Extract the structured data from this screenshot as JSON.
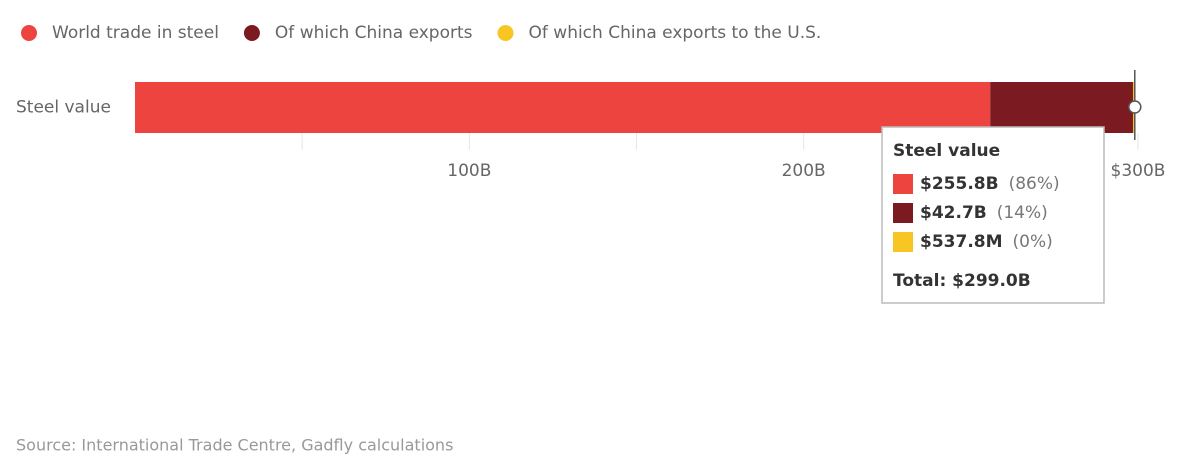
{
  "chart_data": {
    "type": "stacked-bar-horizontal",
    "categories": [
      "Steel value"
    ],
    "series": [
      {
        "name": "World trade in steel",
        "color": "#ee4440",
        "values": [
          255.8
        ],
        "value_labels": [
          "$255.8B"
        ]
      },
      {
        "name": "Of which China exports",
        "color": "#7b1a20",
        "values": [
          42.7
        ],
        "value_labels": [
          "$42.7B"
        ]
      },
      {
        "name": "Of which China exports to the U.S.",
        "color": "#f7c623",
        "values": [
          0.5378
        ],
        "value_labels": [
          "$537.8M"
        ]
      }
    ],
    "xlim": [
      0,
      300
    ],
    "xticks": [
      {
        "value": 100,
        "label": "100B"
      },
      {
        "value": 200,
        "label": "200B"
      },
      {
        "value": 300,
        "label": "$300B"
      }
    ],
    "grid_lines": [
      50,
      150,
      250
    ],
    "tooltip": {
      "shares": [
        "(86%)",
        "(14%)",
        "(0%)"
      ],
      "total": "Total: $299.0B"
    },
    "source": "Source: International Trade Centre, Gadfly calculations"
  }
}
